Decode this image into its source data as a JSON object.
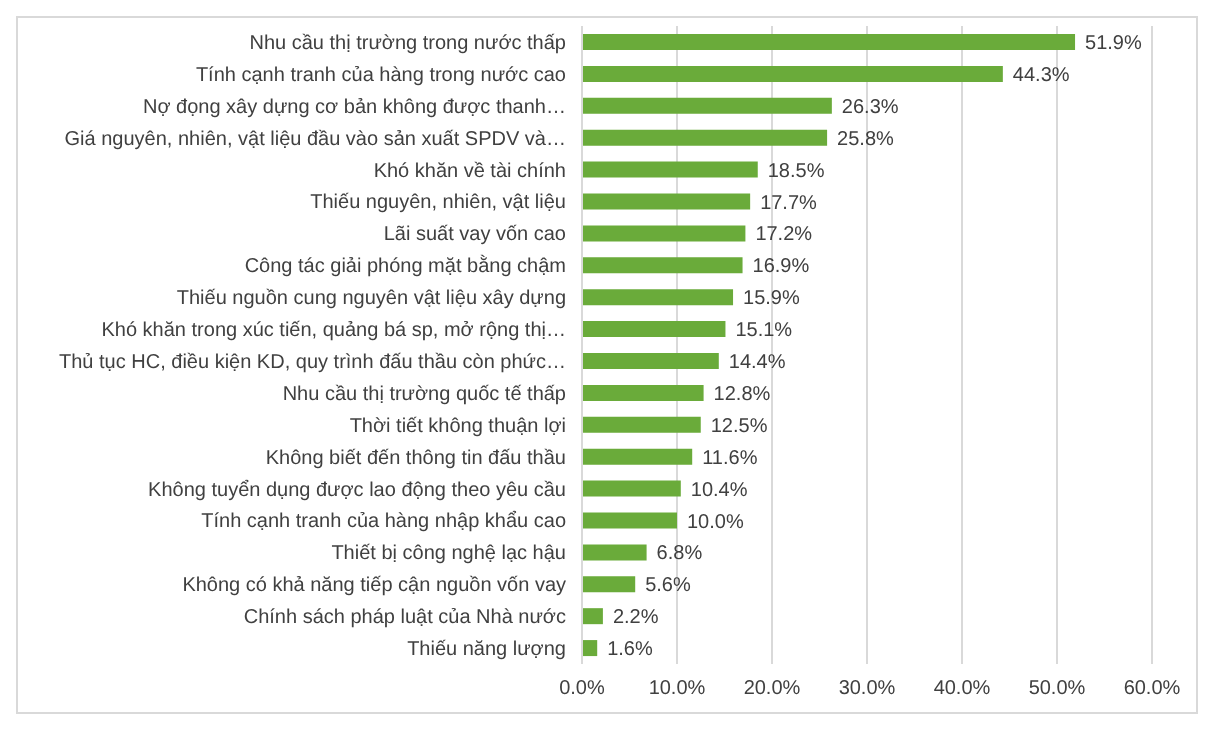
{
  "chart_data": {
    "type": "bar",
    "orientation": "horizontal",
    "categories": [
      "Nhu cầu thị trường trong nước thấp",
      "Tính cạnh tranh của hàng trong nước cao",
      "Nợ đọng xây dựng cơ bản không được thanh…",
      "Giá nguyên, nhiên, vật liệu đầu vào sản xuất SPDV và…",
      "Khó khăn về tài chính",
      "Thiếu nguyên, nhiên, vật liệu",
      "Lãi suất vay vốn cao",
      "Công tác giải phóng mặt bằng chậm",
      "Thiếu nguồn cung nguyên vật liệu xây dựng",
      "Khó khăn trong xúc tiến, quảng bá sp, mở rộng thị…",
      "Thủ tục HC, điều kiện KD, quy trình đấu thầu còn phức…",
      "Nhu cầu thị trường quốc tế thấp",
      "Thời tiết  không thuận lợi",
      "Không biết đến thông tin đấu thầu",
      "Không tuyển dụng được lao động theo yêu cầu",
      "Tính cạnh tranh của hàng nhập khẩu cao",
      "Thiết bị công nghệ lạc hậu",
      "Không có khả năng tiếp cận nguồn vốn vay",
      "Chính sách pháp luật của Nhà nước",
      "Thiếu năng lượng"
    ],
    "values": [
      51.9,
      44.3,
      26.3,
      25.8,
      18.5,
      17.7,
      17.2,
      16.9,
      15.9,
      15.1,
      14.4,
      12.8,
      12.5,
      11.6,
      10.4,
      10.0,
      6.8,
      5.6,
      2.2,
      1.6
    ],
    "value_labels": [
      "51.9%",
      "44.3%",
      "26.3%",
      "25.8%",
      "18.5%",
      "17.7%",
      "17.2%",
      "16.9%",
      "15.9%",
      "15.1%",
      "14.4%",
      "12.8%",
      "12.5%",
      "11.6%",
      "10.4%",
      "10.0%",
      "6.8%",
      "5.6%",
      "2.2%",
      "1.6%"
    ],
    "color": "#6aab3a",
    "xlim": [
      0,
      60
    ],
    "xticks": [
      {
        "value": 0,
        "label": "0.0%"
      },
      {
        "value": 10,
        "label": "10.0%"
      },
      {
        "value": 20,
        "label": "20.0%"
      },
      {
        "value": 30,
        "label": "30.0%"
      },
      {
        "value": 40,
        "label": "40.0%"
      },
      {
        "value": 50,
        "label": "50.0%"
      },
      {
        "value": 60,
        "label": "60.0%"
      }
    ],
    "grid": "x"
  }
}
